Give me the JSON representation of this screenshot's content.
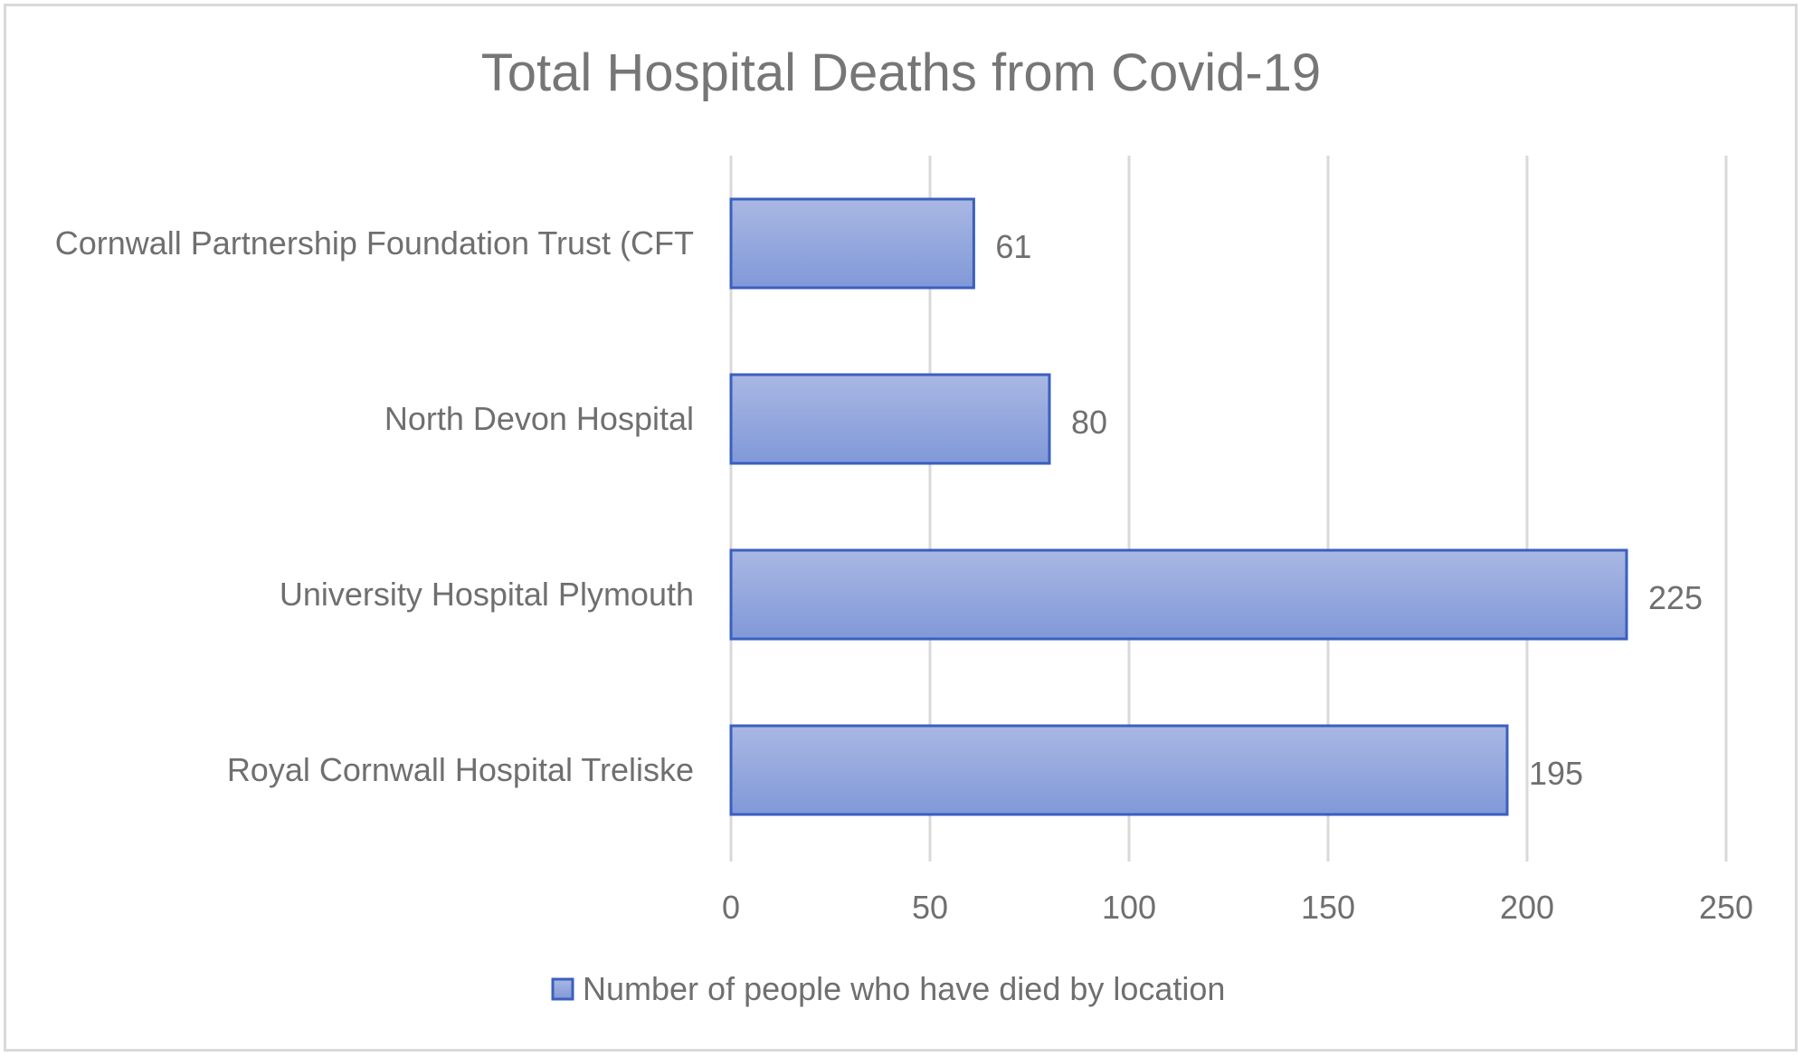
{
  "chart_data": {
    "type": "bar",
    "orientation": "horizontal",
    "title": "Total Hospital Deaths from Covid-19",
    "categories": [
      "Cornwall Partnership Foundation Trust (CFT",
      "North Devon Hospital",
      "University Hospital Plymouth",
      "Royal Cornwall Hospital Treliske"
    ],
    "series": [
      {
        "name": "Number of people who have died by location",
        "values": [
          61,
          80,
          225,
          195
        ],
        "color": "#8fa3dc"
      }
    ],
    "xlim": [
      0,
      250
    ],
    "xticks": [
      0,
      50,
      100,
      150,
      200,
      250
    ],
    "xtick_labels": [
      "0",
      "50",
      "100",
      "150",
      "200",
      "250"
    ],
    "grid": true,
    "legend_position": "bottom",
    "data_labels": true,
    "bar_border_color": "#3a5fbf"
  }
}
